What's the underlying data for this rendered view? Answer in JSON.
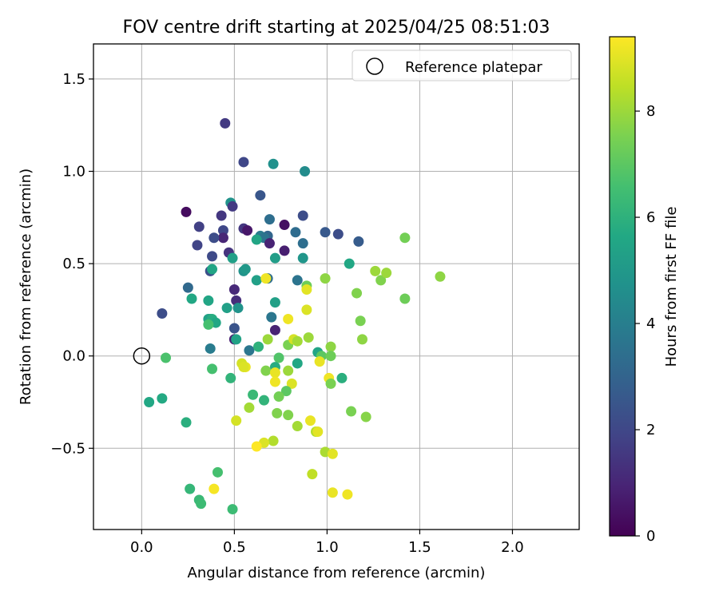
{
  "chart_data": {
    "type": "scatter",
    "title": "FOV centre drift starting at 2025/04/25 08:51:03",
    "xlabel": "Angular distance from reference (arcmin)",
    "ylabel": "Rotation from reference (arcmin)",
    "xlim": [
      -0.26,
      2.36
    ],
    "ylim": [
      -0.94,
      1.69
    ],
    "xticks": [
      0.0,
      0.5,
      1.0,
      1.5,
      2.0
    ],
    "xtick_labels": [
      "0.0",
      "0.5",
      "1.0",
      "1.5",
      "2.0"
    ],
    "yticks": [
      -0.5,
      0.0,
      0.5,
      1.0,
      1.5
    ],
    "ytick_labels": [
      "−0.5",
      "0.0",
      "0.5",
      "1.0",
      "1.5"
    ],
    "grid": true,
    "legend": {
      "placement": "top-right",
      "label": "Reference platepar"
    },
    "reference_point": {
      "x": 0.0,
      "y": 0.0
    },
    "colorbar": {
      "label": "Hours from first FF file",
      "range": [
        0,
        9.4
      ],
      "ticks": [
        0,
        2,
        4,
        6,
        8
      ],
      "tick_labels": [
        "0",
        "2",
        "4",
        "6",
        "8"
      ],
      "colormap": "viridis"
    },
    "points": [
      [
        0.45,
        1.26,
        1.6
      ],
      [
        0.55,
        1.05,
        2.0
      ],
      [
        0.71,
        1.04,
        4.7
      ],
      [
        0.88,
        1.0,
        4.5
      ],
      [
        0.64,
        0.87,
        2.5
      ],
      [
        0.48,
        0.83,
        4.8
      ],
      [
        0.49,
        0.81,
        1.6
      ],
      [
        0.24,
        0.78,
        0.3
      ],
      [
        0.43,
        0.76,
        1.5
      ],
      [
        0.87,
        0.76,
        2.2
      ],
      [
        0.69,
        0.74,
        3.4
      ],
      [
        0.77,
        0.71,
        0.4
      ],
      [
        0.31,
        0.7,
        1.8
      ],
      [
        0.55,
        0.69,
        1.5
      ],
      [
        0.57,
        0.68,
        0.6
      ],
      [
        0.44,
        0.68,
        2.0
      ],
      [
        0.83,
        0.67,
        3.3
      ],
      [
        0.99,
        0.67,
        2.6
      ],
      [
        1.06,
        0.66,
        2.2
      ],
      [
        0.64,
        0.65,
        3.9
      ],
      [
        0.68,
        0.65,
        3.1
      ],
      [
        0.44,
        0.64,
        1.0
      ],
      [
        0.39,
        0.64,
        2.2
      ],
      [
        0.66,
        0.64,
        3.6
      ],
      [
        0.62,
        0.63,
        5.5
      ],
      [
        1.17,
        0.62,
        2.7
      ],
      [
        0.87,
        0.61,
        3.4
      ],
      [
        0.69,
        0.61,
        0.9
      ],
      [
        0.3,
        0.6,
        1.9
      ],
      [
        0.77,
        0.57,
        0.8
      ],
      [
        0.47,
        0.56,
        1.4
      ],
      [
        0.38,
        0.54,
        2.1
      ],
      [
        0.87,
        0.53,
        4.9
      ],
      [
        0.49,
        0.53,
        5.3
      ],
      [
        0.72,
        0.53,
        5.2
      ],
      [
        1.12,
        0.5,
        5.6
      ],
      [
        0.55,
        0.46,
        4.8
      ],
      [
        0.56,
        0.47,
        5.0
      ],
      [
        0.37,
        0.46,
        2.3
      ],
      [
        0.38,
        0.47,
        5.5
      ],
      [
        0.68,
        0.42,
        3.4
      ],
      [
        0.62,
        0.41,
        5.3
      ],
      [
        0.84,
        0.41,
        3.6
      ],
      [
        0.5,
        0.36,
        1.1
      ],
      [
        0.89,
        0.38,
        7.3
      ],
      [
        0.25,
        0.37,
        3.2
      ],
      [
        0.51,
        0.3,
        1.2
      ],
      [
        0.27,
        0.31,
        5.6
      ],
      [
        0.36,
        0.3,
        5.5
      ],
      [
        0.52,
        0.26,
        4.8
      ],
      [
        0.46,
        0.26,
        5.3
      ],
      [
        0.72,
        0.29,
        5.3
      ],
      [
        0.11,
        0.23,
        2.2
      ],
      [
        0.7,
        0.21,
        3.7
      ],
      [
        0.37,
        0.2,
        5.6
      ],
      [
        0.36,
        0.2,
        5.4
      ],
      [
        0.38,
        0.2,
        5.8
      ],
      [
        0.4,
        0.18,
        5.6
      ],
      [
        0.36,
        0.17,
        6.6
      ],
      [
        0.5,
        0.15,
        2.4
      ],
      [
        0.72,
        0.14,
        0.9
      ],
      [
        0.5,
        0.09,
        0.9
      ],
      [
        0.51,
        0.09,
        5.4
      ],
      [
        0.58,
        0.03,
        3.7
      ],
      [
        0.37,
        0.04,
        3.9
      ],
      [
        0.63,
        0.05,
        6.0
      ],
      [
        0.79,
        0.06,
        7.5
      ],
      [
        0.13,
        -0.01,
        6.7
      ],
      [
        0.74,
        -0.01,
        6.8
      ],
      [
        0.95,
        0.02,
        5.5
      ],
      [
        0.97,
        0.0,
        7.0
      ],
      [
        1.02,
        0.05,
        7.8
      ],
      [
        1.02,
        0.0,
        7.3
      ],
      [
        0.84,
        -0.04,
        5.6
      ],
      [
        0.72,
        -0.06,
        5.8
      ],
      [
        0.56,
        -0.06,
        9.1
      ],
      [
        0.38,
        -0.07,
        6.6
      ],
      [
        0.67,
        -0.08,
        7.6
      ],
      [
        0.79,
        -0.08,
        8.0
      ],
      [
        0.72,
        -0.09,
        9.1
      ],
      [
        1.08,
        -0.12,
        5.9
      ],
      [
        1.01,
        -0.12,
        9.2
      ],
      [
        0.48,
        -0.12,
        6.1
      ],
      [
        1.02,
        -0.15,
        7.5
      ],
      [
        0.81,
        -0.15,
        8.9
      ],
      [
        0.72,
        -0.14,
        9.2
      ],
      [
        0.78,
        -0.19,
        7.0
      ],
      [
        0.6,
        -0.21,
        6.3
      ],
      [
        0.74,
        -0.22,
        7.4
      ],
      [
        0.04,
        -0.25,
        5.6
      ],
      [
        0.11,
        -0.23,
        5.7
      ],
      [
        0.66,
        -0.24,
        6.1
      ],
      [
        0.58,
        -0.28,
        8.1
      ],
      [
        0.73,
        -0.31,
        7.6
      ],
      [
        0.79,
        -0.32,
        7.6
      ],
      [
        1.13,
        -0.3,
        7.5
      ],
      [
        1.21,
        -0.33,
        7.7
      ],
      [
        0.51,
        -0.35,
        8.8
      ],
      [
        0.24,
        -0.36,
        5.9
      ],
      [
        0.91,
        -0.35,
        9.1
      ],
      [
        0.84,
        -0.38,
        8.1
      ],
      [
        0.94,
        -0.41,
        8.3
      ],
      [
        0.95,
        -0.41,
        9.0
      ],
      [
        0.71,
        -0.46,
        8.3
      ],
      [
        0.66,
        -0.47,
        8.9
      ],
      [
        0.62,
        -0.49,
        9.4
      ],
      [
        0.99,
        -0.52,
        8.2
      ],
      [
        1.03,
        -0.53,
        9.0
      ],
      [
        0.92,
        -0.64,
        8.5
      ],
      [
        0.41,
        -0.63,
        6.6
      ],
      [
        0.26,
        -0.72,
        6.2
      ],
      [
        0.39,
        -0.72,
        9.3
      ],
      [
        0.31,
        -0.78,
        6.3
      ],
      [
        0.32,
        -0.8,
        6.4
      ],
      [
        1.03,
        -0.74,
        9.1
      ],
      [
        1.11,
        -0.75,
        9.2
      ],
      [
        0.49,
        -0.83,
        6.4
      ],
      [
        0.67,
        0.42,
        9.2
      ],
      [
        0.89,
        0.36,
        9.0
      ],
      [
        0.89,
        0.25,
        8.9
      ],
      [
        0.79,
        0.2,
        9.2
      ],
      [
        0.82,
        0.09,
        8.8
      ],
      [
        0.84,
        0.08,
        8.1
      ],
      [
        0.9,
        0.1,
        8.0
      ],
      [
        0.96,
        -0.03,
        9.1
      ],
      [
        0.68,
        0.09,
        8.0
      ],
      [
        0.54,
        -0.04,
        8.8
      ],
      [
        0.55,
        -0.06,
        8.9
      ],
      [
        0.99,
        0.42,
        7.8
      ],
      [
        1.16,
        0.34,
        7.6
      ],
      [
        1.18,
        0.19,
        7.5
      ],
      [
        1.19,
        0.09,
        7.8
      ],
      [
        1.26,
        0.46,
        8.0
      ],
      [
        1.29,
        0.41,
        7.6
      ],
      [
        1.32,
        0.45,
        8.0
      ],
      [
        1.42,
        0.64,
        7.4
      ],
      [
        1.42,
        0.31,
        7.3
      ],
      [
        1.61,
        0.43,
        7.8
      ]
    ]
  }
}
